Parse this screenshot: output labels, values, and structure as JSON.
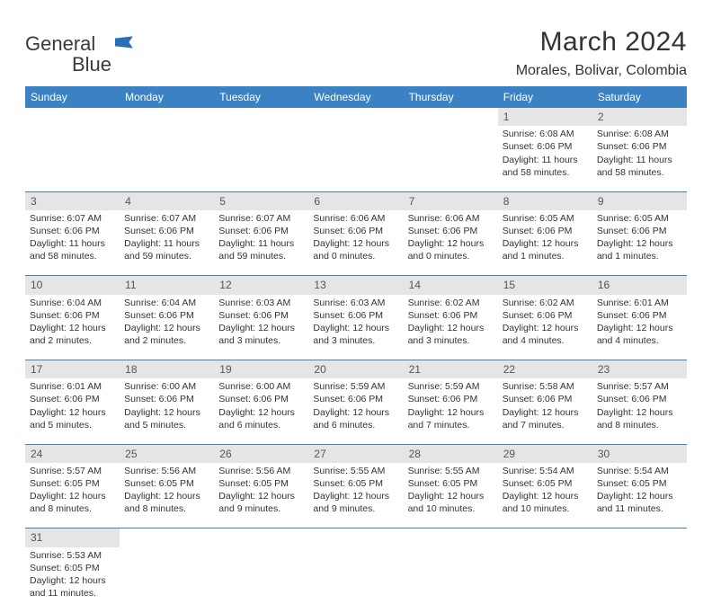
{
  "logo": {
    "word1": "General",
    "word2": "Blue"
  },
  "title": "March 2024",
  "location": "Morales, Bolivar, Colombia",
  "colors": {
    "header_bg": "#3b82c4",
    "header_text": "#ffffff",
    "daynum_bg": "#e5e5e5",
    "row_divider": "#3b82c4",
    "text": "#333333",
    "logo_blue": "#2a6fb5"
  },
  "dayHeaders": [
    "Sunday",
    "Monday",
    "Tuesday",
    "Wednesday",
    "Thursday",
    "Friday",
    "Saturday"
  ],
  "weeks": [
    [
      null,
      null,
      null,
      null,
      null,
      {
        "n": "1",
        "sunrise": "6:08 AM",
        "sunset": "6:06 PM",
        "day_h": "11",
        "day_m": "58"
      },
      {
        "n": "2",
        "sunrise": "6:08 AM",
        "sunset": "6:06 PM",
        "day_h": "11",
        "day_m": "58"
      }
    ],
    [
      {
        "n": "3",
        "sunrise": "6:07 AM",
        "sunset": "6:06 PM",
        "day_h": "11",
        "day_m": "58"
      },
      {
        "n": "4",
        "sunrise": "6:07 AM",
        "sunset": "6:06 PM",
        "day_h": "11",
        "day_m": "59"
      },
      {
        "n": "5",
        "sunrise": "6:07 AM",
        "sunset": "6:06 PM",
        "day_h": "11",
        "day_m": "59"
      },
      {
        "n": "6",
        "sunrise": "6:06 AM",
        "sunset": "6:06 PM",
        "day_h": "12",
        "day_m": "0"
      },
      {
        "n": "7",
        "sunrise": "6:06 AM",
        "sunset": "6:06 PM",
        "day_h": "12",
        "day_m": "0"
      },
      {
        "n": "8",
        "sunrise": "6:05 AM",
        "sunset": "6:06 PM",
        "day_h": "12",
        "day_m": "1"
      },
      {
        "n": "9",
        "sunrise": "6:05 AM",
        "sunset": "6:06 PM",
        "day_h": "12",
        "day_m": "1"
      }
    ],
    [
      {
        "n": "10",
        "sunrise": "6:04 AM",
        "sunset": "6:06 PM",
        "day_h": "12",
        "day_m": "2"
      },
      {
        "n": "11",
        "sunrise": "6:04 AM",
        "sunset": "6:06 PM",
        "day_h": "12",
        "day_m": "2"
      },
      {
        "n": "12",
        "sunrise": "6:03 AM",
        "sunset": "6:06 PM",
        "day_h": "12",
        "day_m": "3"
      },
      {
        "n": "13",
        "sunrise": "6:03 AM",
        "sunset": "6:06 PM",
        "day_h": "12",
        "day_m": "3"
      },
      {
        "n": "14",
        "sunrise": "6:02 AM",
        "sunset": "6:06 PM",
        "day_h": "12",
        "day_m": "3"
      },
      {
        "n": "15",
        "sunrise": "6:02 AM",
        "sunset": "6:06 PM",
        "day_h": "12",
        "day_m": "4"
      },
      {
        "n": "16",
        "sunrise": "6:01 AM",
        "sunset": "6:06 PM",
        "day_h": "12",
        "day_m": "4"
      }
    ],
    [
      {
        "n": "17",
        "sunrise": "6:01 AM",
        "sunset": "6:06 PM",
        "day_h": "12",
        "day_m": "5"
      },
      {
        "n": "18",
        "sunrise": "6:00 AM",
        "sunset": "6:06 PM",
        "day_h": "12",
        "day_m": "5"
      },
      {
        "n": "19",
        "sunrise": "6:00 AM",
        "sunset": "6:06 PM",
        "day_h": "12",
        "day_m": "6"
      },
      {
        "n": "20",
        "sunrise": "5:59 AM",
        "sunset": "6:06 PM",
        "day_h": "12",
        "day_m": "6"
      },
      {
        "n": "21",
        "sunrise": "5:59 AM",
        "sunset": "6:06 PM",
        "day_h": "12",
        "day_m": "7"
      },
      {
        "n": "22",
        "sunrise": "5:58 AM",
        "sunset": "6:06 PM",
        "day_h": "12",
        "day_m": "7"
      },
      {
        "n": "23",
        "sunrise": "5:57 AM",
        "sunset": "6:06 PM",
        "day_h": "12",
        "day_m": "8"
      }
    ],
    [
      {
        "n": "24",
        "sunrise": "5:57 AM",
        "sunset": "6:05 PM",
        "day_h": "12",
        "day_m": "8"
      },
      {
        "n": "25",
        "sunrise": "5:56 AM",
        "sunset": "6:05 PM",
        "day_h": "12",
        "day_m": "8"
      },
      {
        "n": "26",
        "sunrise": "5:56 AM",
        "sunset": "6:05 PM",
        "day_h": "12",
        "day_m": "9"
      },
      {
        "n": "27",
        "sunrise": "5:55 AM",
        "sunset": "6:05 PM",
        "day_h": "12",
        "day_m": "9"
      },
      {
        "n": "28",
        "sunrise": "5:55 AM",
        "sunset": "6:05 PM",
        "day_h": "12",
        "day_m": "10"
      },
      {
        "n": "29",
        "sunrise": "5:54 AM",
        "sunset": "6:05 PM",
        "day_h": "12",
        "day_m": "10"
      },
      {
        "n": "30",
        "sunrise": "5:54 AM",
        "sunset": "6:05 PM",
        "day_h": "12",
        "day_m": "11"
      }
    ],
    [
      {
        "n": "31",
        "sunrise": "5:53 AM",
        "sunset": "6:05 PM",
        "day_h": "12",
        "day_m": "11"
      },
      null,
      null,
      null,
      null,
      null,
      null
    ]
  ],
  "labels": {
    "sunrise": "Sunrise:",
    "sunset": "Sunset:",
    "daylight_prefix": "Daylight:",
    "hours": "hours",
    "and": "and",
    "minutes": "minutes."
  }
}
